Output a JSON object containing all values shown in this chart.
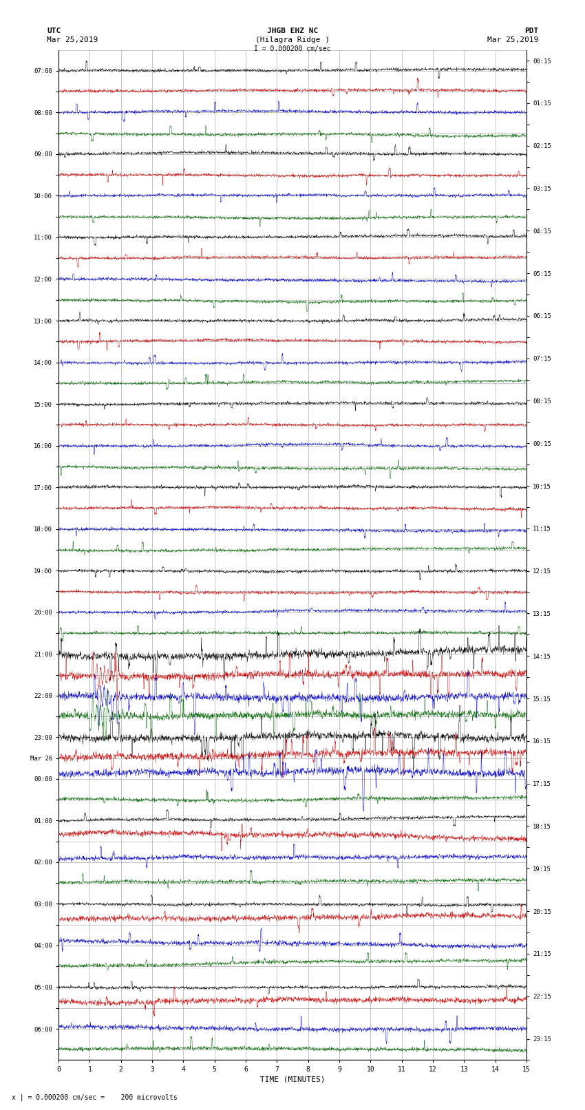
{
  "title_line1": "JHGB EHZ NC",
  "title_line2": "(Hilagra Ridge )",
  "scale_label": "I = 0.000200 cm/sec",
  "left_label_top": "UTC",
  "left_label_date": "Mar 25,2019",
  "right_label_top": "PDT",
  "right_label_date": "Mar 25,2019",
  "bottom_label": "TIME (MINUTES)",
  "bottom_note": "x | = 0.000200 cm/sec =    200 microvolts",
  "utc_times_left": [
    "07:00",
    "",
    "08:00",
    "",
    "09:00",
    "",
    "10:00",
    "",
    "11:00",
    "",
    "12:00",
    "",
    "13:00",
    "",
    "14:00",
    "",
    "15:00",
    "",
    "16:00",
    "",
    "17:00",
    "",
    "18:00",
    "",
    "19:00",
    "",
    "20:00",
    "",
    "21:00",
    "",
    "22:00",
    "",
    "23:00",
    "Mar 26",
    "00:00",
    "",
    "01:00",
    "",
    "02:00",
    "",
    "03:00",
    "",
    "04:00",
    "",
    "05:00",
    "",
    "06:00",
    ""
  ],
  "pdt_times_right": [
    "00:15",
    "",
    "01:15",
    "",
    "02:15",
    "",
    "03:15",
    "",
    "04:15",
    "",
    "05:15",
    "",
    "06:15",
    "",
    "07:15",
    "",
    "08:15",
    "",
    "09:15",
    "",
    "10:15",
    "",
    "11:15",
    "",
    "12:15",
    "",
    "13:15",
    "",
    "14:15",
    "",
    "15:15",
    "",
    "16:15",
    "",
    "17:15",
    "",
    "18:15",
    "",
    "19:15",
    "",
    "20:15",
    "",
    "21:15",
    "",
    "22:15",
    "",
    "23:15",
    ""
  ],
  "n_rows": 48,
  "minutes": 15,
  "bg_color": "#ffffff",
  "colors": [
    "#000000",
    "#cc0000",
    "#0000cc",
    "#006600"
  ],
  "grid_color": "#999999"
}
